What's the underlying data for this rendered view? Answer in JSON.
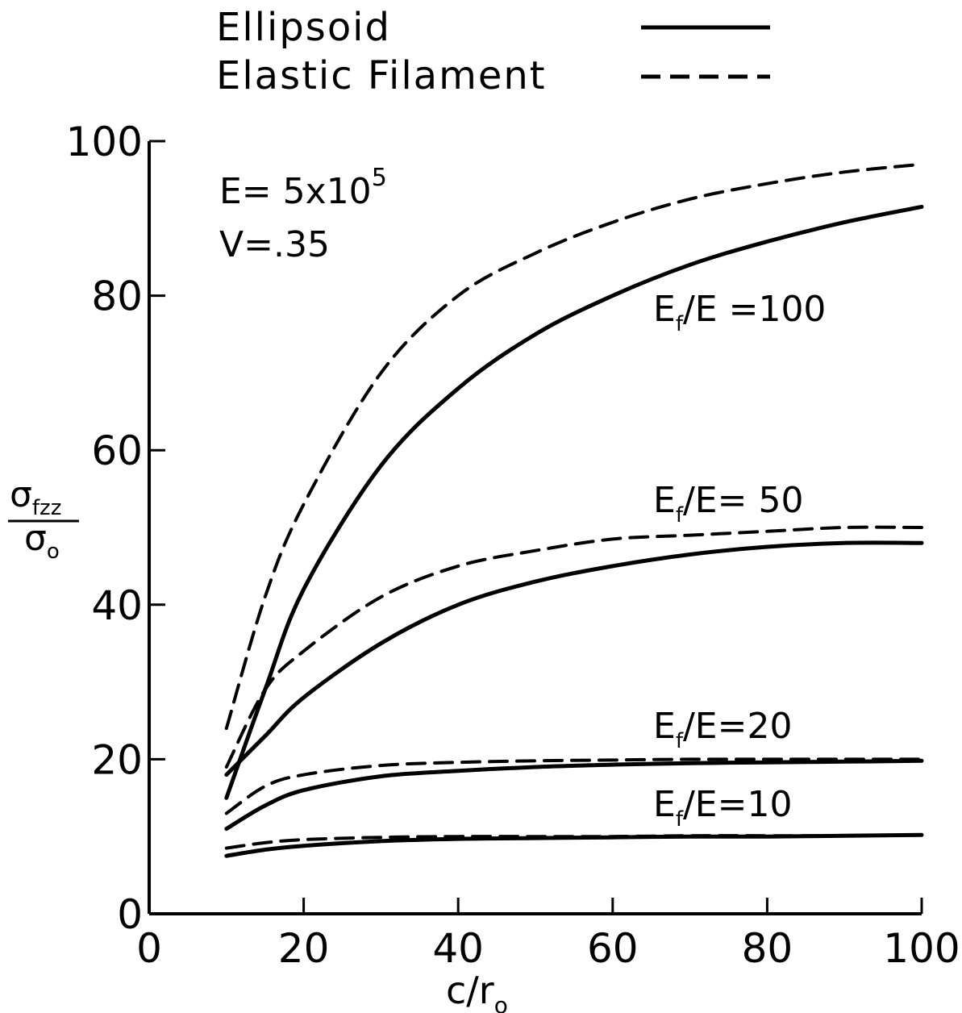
{
  "chart_data": {
    "type": "line",
    "xlabel": {
      "main": "c/r",
      "sub": "o"
    },
    "ylabel": {
      "numerator": "σ",
      "numerator_sub": "fzz",
      "denominator": "σ",
      "denominator_sub": "o"
    },
    "xlim": [
      0,
      100
    ],
    "ylim": [
      0,
      100
    ],
    "x_ticks": [
      0,
      20,
      40,
      60,
      80,
      100
    ],
    "y_ticks": [
      0,
      20,
      40,
      60,
      80,
      100
    ],
    "x_tick_labels": [
      "0",
      "20",
      "40",
      "60",
      "80",
      "100"
    ],
    "y_tick_labels": [
      "0",
      "20",
      "40",
      "60",
      "80",
      "100"
    ],
    "grid": false,
    "legend": {
      "position": "top",
      "entries": [
        {
          "label": "Ellipsoid",
          "style": "solid"
        },
        {
          "label": "Elastic Filament",
          "style": "dashed"
        }
      ]
    },
    "annotations": {
      "params": {
        "E_prefix": "E= 5x10",
        "E_exp": "5",
        "nu": "V=.35"
      },
      "ratio_prefix": "E",
      "ratio_sub": "f",
      "ratio_labels": [
        {
          "suffix": "/E =100",
          "near": "Ef/E=100"
        },
        {
          "suffix": "/E= 50",
          "near": "Ef/E=50"
        },
        {
          "suffix": "/E=20",
          "near": "Ef/E=20"
        },
        {
          "suffix": "/E=10",
          "near": "Ef/E=10"
        }
      ]
    },
    "series": [
      {
        "group": "Ef/E=100",
        "style": "solid",
        "x": [
          10,
          15,
          20,
          30,
          40,
          50,
          60,
          70,
          80,
          90,
          100
        ],
        "y": [
          15,
          29,
          42,
          58,
          68,
          75,
          80,
          84,
          87,
          89.5,
          91.5
        ]
      },
      {
        "group": "Ef/E=100",
        "style": "dashed",
        "x": [
          10,
          15,
          20,
          30,
          40,
          50,
          60,
          70,
          80,
          90,
          100
        ],
        "y": [
          24,
          41,
          53,
          70,
          80,
          85.5,
          89.5,
          92.5,
          94.5,
          96,
          97
        ]
      },
      {
        "group": "Ef/E=50",
        "style": "solid",
        "x": [
          10,
          15,
          20,
          30,
          40,
          50,
          60,
          70,
          80,
          90,
          100
        ],
        "y": [
          18,
          23,
          28,
          35,
          40,
          43,
          45,
          46.5,
          47.5,
          48,
          48
        ]
      },
      {
        "group": "Ef/E=50",
        "style": "dashed",
        "x": [
          10,
          15,
          20,
          30,
          40,
          50,
          60,
          70,
          80,
          90,
          100
        ],
        "y": [
          19,
          29,
          34,
          41,
          45,
          47,
          48.5,
          49,
          49.5,
          50,
          50
        ]
      },
      {
        "group": "Ef/E=20",
        "style": "solid",
        "x": [
          10,
          15,
          20,
          30,
          40,
          50,
          60,
          70,
          80,
          90,
          100
        ],
        "y": [
          11,
          14,
          16,
          17.8,
          18.5,
          19,
          19.3,
          19.5,
          19.6,
          19.7,
          19.8
        ]
      },
      {
        "group": "Ef/E=20",
        "style": "dashed",
        "x": [
          10,
          15,
          20,
          30,
          40,
          50,
          60,
          70,
          80,
          90,
          100
        ],
        "y": [
          13,
          16.5,
          18,
          19.2,
          19.6,
          19.8,
          19.9,
          20,
          20,
          20,
          20
        ]
      },
      {
        "group": "Ef/E=10",
        "style": "solid",
        "x": [
          10,
          15,
          20,
          30,
          40,
          50,
          60,
          70,
          80,
          90,
          100
        ],
        "y": [
          7.5,
          8.3,
          8.8,
          9.4,
          9.7,
          9.8,
          9.9,
          10,
          10,
          10.1,
          10.2
        ]
      },
      {
        "group": "Ef/E=10",
        "style": "dashed",
        "x": [
          10,
          15,
          20,
          30,
          40,
          50,
          60,
          70,
          80,
          90,
          100
        ],
        "y": [
          8.5,
          9.2,
          9.6,
          9.9,
          10,
          10,
          10,
          10.1,
          10.1,
          10.1,
          10.2
        ]
      }
    ]
  }
}
